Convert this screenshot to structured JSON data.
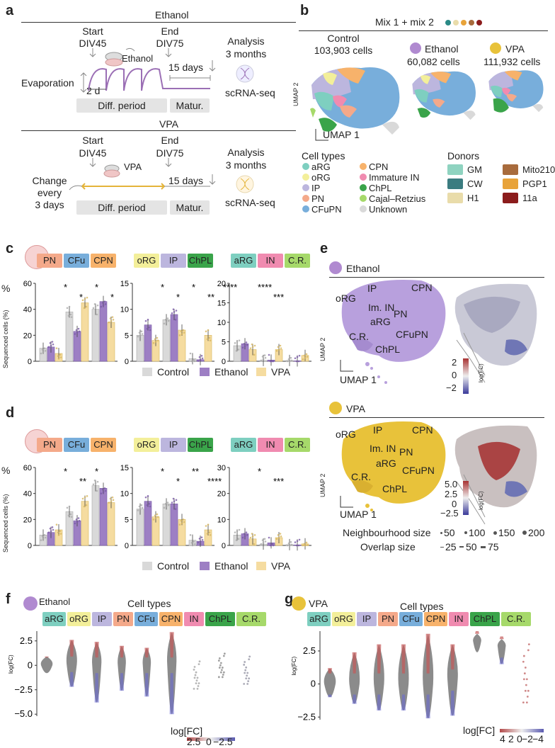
{
  "panels": {
    "a": {
      "letter": "a",
      "ethanol": {
        "title": "Ethanol",
        "start": "Start",
        "start_div": "DIV45",
        "end": "End",
        "end_div": "DIV75",
        "agent": "Ethanol",
        "analysis": "Analysis",
        "analysis_time": "3 months",
        "evaporation": "Evaporation",
        "two_d": "2 d",
        "fifteen": "15 days",
        "scrna": "scRNA-seq",
        "diff": "Diff. period",
        "matur": "Matur."
      },
      "vpa": {
        "title": "VPA",
        "start": "Start",
        "start_div": "DIV45",
        "end": "End",
        "end_div": "DIV75",
        "agent": "VPA",
        "analysis": "Analysis",
        "analysis_time": "3 months",
        "change1": "Change",
        "change2": "every",
        "change3": "3 days",
        "fifteen": "15 days",
        "scrna": "scRNA-seq",
        "diff": "Diff. period",
        "matur": "Matur."
      }
    },
    "b": {
      "letter": "b",
      "mix": "Mix 1 + mix 2",
      "control": "Control",
      "control_cells": "103,903 cells",
      "ethanol": "Ethanol",
      "ethanol_cells": "60,082 cells",
      "vpa": "VPA",
      "vpa_cells": "111,932 cells",
      "umap1": "UMAP 1",
      "umap2": "UMAP 2",
      "cell_types_title": "Cell types",
      "cell_types": [
        {
          "label": "aRG",
          "color": "#7ecfc0"
        },
        {
          "label": "oRG",
          "color": "#f3ef9a"
        },
        {
          "label": "IP",
          "color": "#bcb6de"
        },
        {
          "label": "PN",
          "color": "#f4a98a"
        },
        {
          "label": "CFuPN",
          "color": "#78aedb"
        },
        {
          "label": "CPN",
          "color": "#f7b26b"
        },
        {
          "label": "Immature IN",
          "color": "#f08bb0"
        },
        {
          "label": "ChPL",
          "color": "#3aa44a"
        },
        {
          "label": "Cajal–Retzius",
          "color": "#a6d96a"
        },
        {
          "label": "Unknown",
          "color": "#d9d9d9"
        }
      ],
      "donors_title": "Donors",
      "donors": [
        {
          "label": "GM",
          "color": "#8fd3c0"
        },
        {
          "label": "Mito210",
          "color": "#a86b3c"
        },
        {
          "label": "CW",
          "color": "#3b7c80"
        },
        {
          "label": "PGP1",
          "color": "#e8a33a"
        },
        {
          "label": "H1",
          "color": "#e9dcaa"
        },
        {
          "label": "11a",
          "color": "#8b1c1c"
        }
      ]
    },
    "c": {
      "letter": "c",
      "ylabel": "Sequenced cells (%)",
      "legend": [
        "Control",
        "Ethanol",
        "VPA"
      ],
      "groups": [
        {
          "chips": [
            "PN",
            "CFu",
            "CPN"
          ],
          "yticks": [
            "0",
            "20",
            "40",
            "60"
          ],
          "stars": [
            "*",
            "*",
            "*",
            "*"
          ]
        },
        {
          "chips": [
            "oRG",
            "IP",
            "ChPL"
          ],
          "yticks": [
            "0",
            "5",
            "10",
            "15"
          ],
          "stars": [
            "*",
            "*",
            "*",
            "**",
            "****"
          ]
        },
        {
          "chips": [
            "aRG",
            "IN",
            "C.R."
          ],
          "yticks": [
            "0",
            "5",
            "10",
            "15",
            "20"
          ],
          "stars": [
            "****",
            "***"
          ]
        }
      ]
    },
    "d": {
      "letter": "d",
      "ylabel": "Sequenced cells (%)",
      "legend": [
        "Control",
        "Ethanol",
        "VPA"
      ],
      "groups": [
        {
          "chips": [
            "PN",
            "CFu",
            "CPN"
          ],
          "yticks": [
            "0",
            "20",
            "40",
            "60"
          ],
          "stars": [
            "*",
            "**",
            "*"
          ]
        },
        {
          "chips": [
            "oRG",
            "IP",
            "ChPL"
          ],
          "yticks": [
            "0",
            "5",
            "10",
            "15"
          ],
          "stars": [
            "*",
            "*",
            "**",
            "****"
          ]
        },
        {
          "chips": [
            "aRG",
            "IN",
            "C.R."
          ],
          "yticks": [
            "0",
            "10",
            "20",
            "30"
          ],
          "stars": [
            "*",
            "***"
          ]
        }
      ]
    },
    "e": {
      "letter": "e",
      "ethanol": "Ethanol",
      "vpa": "VPA",
      "labels": [
        "oRG",
        "IP",
        "CPN",
        "Im. IN",
        "PN",
        "aRG",
        "CFuPN",
        "C.R.",
        "ChPL"
      ],
      "umap1": "UMAP 1",
      "umap2": "UMAP 2",
      "scale_eth": [
        "2",
        "0",
        "−2"
      ],
      "scale_vpa": [
        "5.0",
        "2.5",
        "0",
        "−2.5"
      ],
      "scale_title": "log(FC)",
      "neigh_title": "Neighbourhood size",
      "neigh_vals": [
        "50",
        "100",
        "150",
        "200"
      ],
      "overlap_title": "Overlap size",
      "overlap_vals": [
        "25",
        "50",
        "75"
      ]
    },
    "f": {
      "letter": "f",
      "agent": "Ethanol",
      "cell_types": "Cell types",
      "chips": [
        "aRG",
        "oRG",
        "IP",
        "PN",
        "CFu",
        "CPN",
        "IN",
        "ChPL",
        "C.R."
      ],
      "yticks": [
        "2.5",
        "0",
        "−2.5",
        "−5.0"
      ],
      "ylabel": "log(FC)",
      "legend_title": "log[FC]",
      "legend_vals": [
        "2.5",
        "0",
        "−2.5"
      ]
    },
    "g": {
      "letter": "g",
      "agent": "VPA",
      "cell_types": "Cell types",
      "chips": [
        "aRG",
        "oRG",
        "IP",
        "PN",
        "CFu",
        "CPN",
        "IN",
        "ChPL",
        "C.R."
      ],
      "yticks": [
        "2.5",
        "0",
        "−2.5"
      ],
      "ylabel": "log(FC)",
      "legend_title": "log[FC]",
      "legend_vals": [
        "4",
        "2",
        "0",
        "−2",
        "−4"
      ]
    }
  },
  "chip_colors": {
    "PN": "#f4a98a",
    "CFu": "#78aedb",
    "CPN": "#f7b26b",
    "oRG": "#f3ef9a",
    "IP": "#bcb6de",
    "ChPL": "#3aa44a",
    "aRG": "#7ecfc0",
    "IN": "#f08bb0",
    "C.R.": "#a6d96a"
  },
  "chart_data": [
    {
      "type": "bar",
      "panel": "c",
      "categories": [
        "PN",
        "CFu",
        "CPN",
        "oRG",
        "IP",
        "ChPL",
        "aRG",
        "IN",
        "C.R."
      ],
      "series": [
        {
          "name": "Control",
          "values": [
            10,
            38,
            40,
            5,
            8,
            0.5,
            4,
            0.2,
            0.2
          ]
        },
        {
          "name": "Ethanol",
          "values": [
            11,
            23,
            46,
            7,
            9,
            0.3,
            4.5,
            0.3,
            0.1
          ]
        },
        {
          "name": "VPA",
          "values": [
            6,
            45,
            30,
            4,
            6,
            5,
            3,
            3,
            1.5
          ]
        }
      ]
    },
    {
      "type": "bar",
      "panel": "d",
      "categories": [
        "PN",
        "CFu",
        "CPN",
        "oRG",
        "IP",
        "ChPL",
        "aRG",
        "IN",
        "C.R."
      ],
      "series": [
        {
          "name": "Control",
          "values": [
            8,
            26,
            46,
            7,
            8,
            1,
            4,
            0.5,
            0.3
          ]
        },
        {
          "name": "Ethanol",
          "values": [
            10,
            19,
            44,
            8.5,
            8,
            0.8,
            4.5,
            1,
            0.2
          ]
        },
        {
          "name": "VPA",
          "values": [
            12,
            34,
            33,
            5.5,
            5,
            3,
            2.5,
            3,
            0.6
          ]
        }
      ]
    }
  ]
}
